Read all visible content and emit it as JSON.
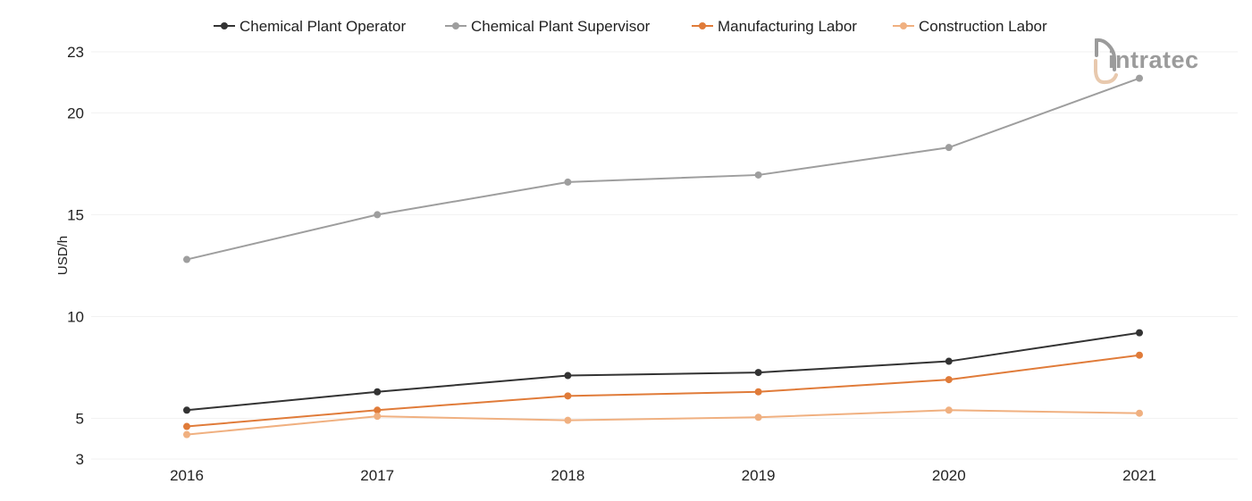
{
  "chart_data": {
    "type": "line",
    "categories": [
      "2016",
      "2017",
      "2018",
      "2019",
      "2020",
      "2021"
    ],
    "ylabel": "USD/h",
    "xlabel": "",
    "ylim": [
      3,
      23
    ],
    "yticks": [
      "3",
      "5",
      "10",
      "15",
      "20",
      "23"
    ],
    "grid": true,
    "legend_position": "top",
    "series": [
      {
        "name": "Chemical Plant Operator",
        "color": "#333333",
        "values": [
          5.4,
          6.3,
          7.1,
          7.25,
          7.8,
          9.2
        ]
      },
      {
        "name": "Chemical Plant Supervisor",
        "color": "#9e9e9e",
        "values": [
          12.8,
          15.0,
          16.6,
          16.95,
          18.3,
          21.7
        ]
      },
      {
        "name": "Manufacturing Labor",
        "color": "#e07b39",
        "values": [
          4.6,
          5.4,
          6.1,
          6.3,
          6.9,
          8.1
        ]
      },
      {
        "name": "Construction Labor",
        "color": "#f0b080",
        "values": [
          4.2,
          5.1,
          4.9,
          5.05,
          5.4,
          5.25
        ]
      }
    ]
  },
  "logo": {
    "text": "intratec"
  }
}
